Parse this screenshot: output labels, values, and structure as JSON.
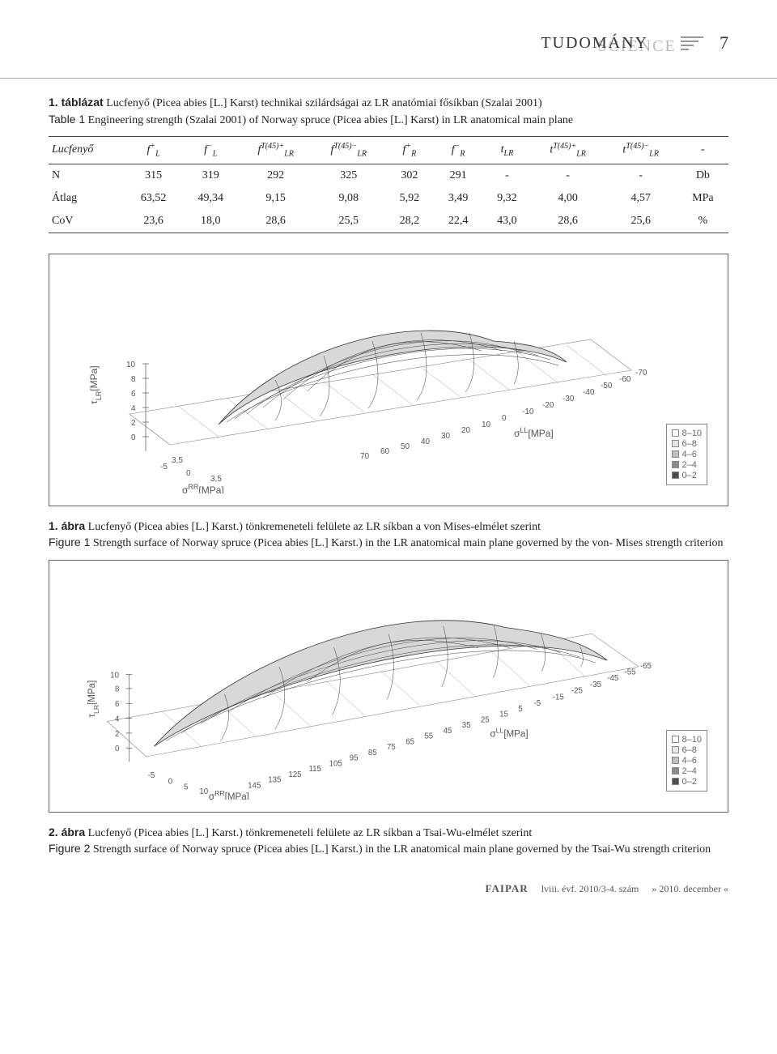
{
  "header": {
    "title_front": "TUDOMÁNY",
    "title_back": "SCIENCE",
    "page_number": "7"
  },
  "table1_caption_hu_label": "1. táblázat",
  "table1_caption_hu": "Lucfenyő (Picea abies [L.] Karst) technikai szilárdságai az LR anatómiai fősíkban (Szalai 2001)",
  "table1_caption_en_label": "Table 1",
  "table1_caption_en": "Engineering strength (Szalai 2001) of Norway spruce (Picea abies [L.] Karst) in LR anatomical main plane",
  "table": {
    "corner": "Lucfenyő",
    "headers": [
      {
        "base": "f",
        "sub": "L",
        "sup": "+"
      },
      {
        "base": "f",
        "sub": "L",
        "sup": "−"
      },
      {
        "base": "f",
        "sub": "LR",
        "sup": "T(45)+"
      },
      {
        "base": "f",
        "sub": "LR",
        "sup": "T(45)−"
      },
      {
        "base": "f",
        "sub": "R",
        "sup": "+"
      },
      {
        "base": "f",
        "sub": "R",
        "sup": "−"
      },
      {
        "base": "t",
        "sub": "LR",
        "sup": ""
      },
      {
        "base": "t",
        "sub": "LR",
        "sup": "T(45)+"
      },
      {
        "base": "t",
        "sub": "LR",
        "sup": "T(45)−"
      },
      {
        "plain": "-"
      }
    ],
    "rows": [
      {
        "label": "N",
        "cells": [
          "315",
          "319",
          "292",
          "325",
          "302",
          "291",
          "-",
          "-",
          "-",
          "Db"
        ]
      },
      {
        "label": "Átlag",
        "cells": [
          "63,52",
          "49,34",
          "9,15",
          "9,08",
          "5,92",
          "3,49",
          "9,32",
          "4,00",
          "4,57",
          "MPa"
        ]
      },
      {
        "label": "CoV",
        "cells": [
          "23,6",
          "18,0",
          "28,6",
          "25,5",
          "28,2",
          "22,4",
          "43,0",
          "28,6",
          "25,6",
          "%"
        ]
      }
    ]
  },
  "fig1_caption_hu_label": "1. ábra",
  "fig1_caption_hu": "Lucfenyő (Picea abies [L.] Karst.) tönkremeneteli felülete az LR síkban a von Mises-elmélet szerint",
  "fig1_caption_en_label": "Figure 1",
  "fig1_caption_en": "Strength surface of Norway spruce (Picea abies [L.] Karst.) in the LR anatomical main plane governed by the von- Mises strength criterion",
  "fig2_caption_hu_label": "2. ábra",
  "fig2_caption_hu": "Lucfenyő (Picea abies [L.] Karst.) tönkremeneteli felülete az LR síkban a Tsai-Wu-elmélet szerint",
  "fig2_caption_en_label": "Figure 2",
  "fig2_caption_en": "Strength surface of Norway spruce (Picea abies [L.] Karst.) in the LR anatomical main plane governed by the Tsai-Wu strength criterion",
  "legend": {
    "bins": [
      "8–10",
      "6–8",
      "4–6",
      "2–4",
      "0–2"
    ],
    "colors": [
      "#ffffff",
      "#e6e6e6",
      "#bfbfbf",
      "#8c8c8c",
      "#4d4d4d"
    ]
  },
  "chart1": {
    "type": "3d-surface",
    "x_label": "σ LL [MPa]",
    "y_label": "σ RR [MPa]",
    "z_label": "τ LR [MPa]",
    "x_ticks": [
      -70,
      -60,
      -50,
      -40,
      -30,
      -20,
      -10,
      0,
      10,
      20,
      30,
      40,
      50,
      60,
      70
    ],
    "y_ticks": [
      -5,
      0,
      3.5
    ],
    "y_front_ticks": [
      0,
      3.5
    ],
    "z_ticks": [
      0,
      2,
      4,
      6,
      8,
      10
    ],
    "surface_fill": "#dcdcdc",
    "mesh_color": "#333333",
    "background_color": "#ffffff"
  },
  "chart2": {
    "type": "3d-surface",
    "x_label": "σ LL [MPa]",
    "y_label": "σ RR [MPa]",
    "z_label": "τ LR [MPa]",
    "x_ticks": [
      -65,
      -55,
      -45,
      -35,
      -25,
      -15,
      -5,
      5,
      15,
      25,
      35,
      45,
      55,
      65,
      75,
      85,
      95,
      105,
      115,
      125,
      135,
      145
    ],
    "y_ticks": [
      -5,
      0,
      5,
      10
    ],
    "z_ticks": [
      0,
      2,
      4,
      6,
      8,
      10
    ],
    "surface_fill": "#dcdcdc",
    "mesh_color": "#333333",
    "background_color": "#ffffff"
  },
  "footer": {
    "journal": "FAIPAR",
    "issue": "lviii. évf. 2010/3-4. szám",
    "date": "» 2010. december «"
  }
}
